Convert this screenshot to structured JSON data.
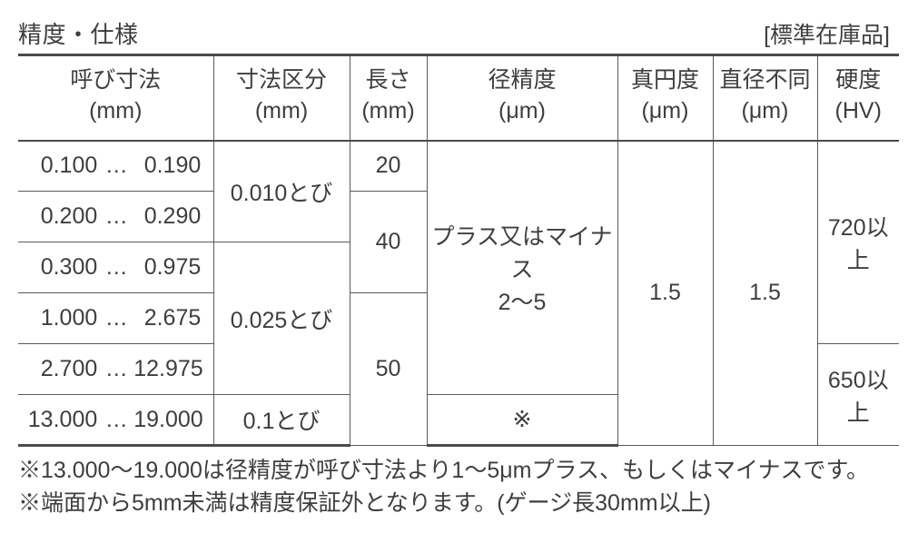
{
  "header": {
    "title": "精度・仕様",
    "stock_label": "[標準在庫品]"
  },
  "columns": {
    "dim": {
      "l1": "呼び寸法",
      "l2": "(mm)"
    },
    "div": {
      "l1": "寸法区分",
      "l2": "(mm)"
    },
    "len": {
      "l1": "長さ",
      "l2": "(mm)"
    },
    "dacc": {
      "l1": "径精度",
      "l2": "(μm)"
    },
    "round": {
      "l1": "真円度",
      "l2": "(μm)"
    },
    "diff": {
      "l1": "直径不同",
      "l2": "(μm)"
    },
    "hard": {
      "l1": "硬度",
      "l2": "(HV)"
    }
  },
  "rows": [
    {
      "from": "0.100",
      "to": "0.190"
    },
    {
      "from": "0.200",
      "to": "0.290"
    },
    {
      "from": "0.300",
      "to": "0.975"
    },
    {
      "from": "1.000",
      "to": "2.675"
    },
    {
      "from": "2.700",
      "to": "12.975"
    },
    {
      "from": "13.000",
      "to": "19.000"
    }
  ],
  "div": {
    "a": "0.010とび",
    "b": "0.025とび",
    "c": "0.1とび"
  },
  "len": {
    "a": "20",
    "b": "40",
    "c": "50"
  },
  "dacc": {
    "main_l1": "プラス又はマイナス",
    "main_l2": "2〜5",
    "note": "※"
  },
  "round": "1.5",
  "diff": "1.5",
  "hard": {
    "a": "720以上",
    "b": "650以上"
  },
  "notes": {
    "n1": "※13.000〜19.000は径精度が呼び寸法より1〜5μmプラス、もしくはマイナスです。",
    "n2": "※端面から5mm未満は精度保証外となります。(ゲージ長30mm以上)"
  },
  "style": {
    "text_color": "#3e3e3e",
    "border_color": "#5a5a5a",
    "bg": "#ffffff",
    "font_size_body": 25,
    "font_size_title": 26
  }
}
